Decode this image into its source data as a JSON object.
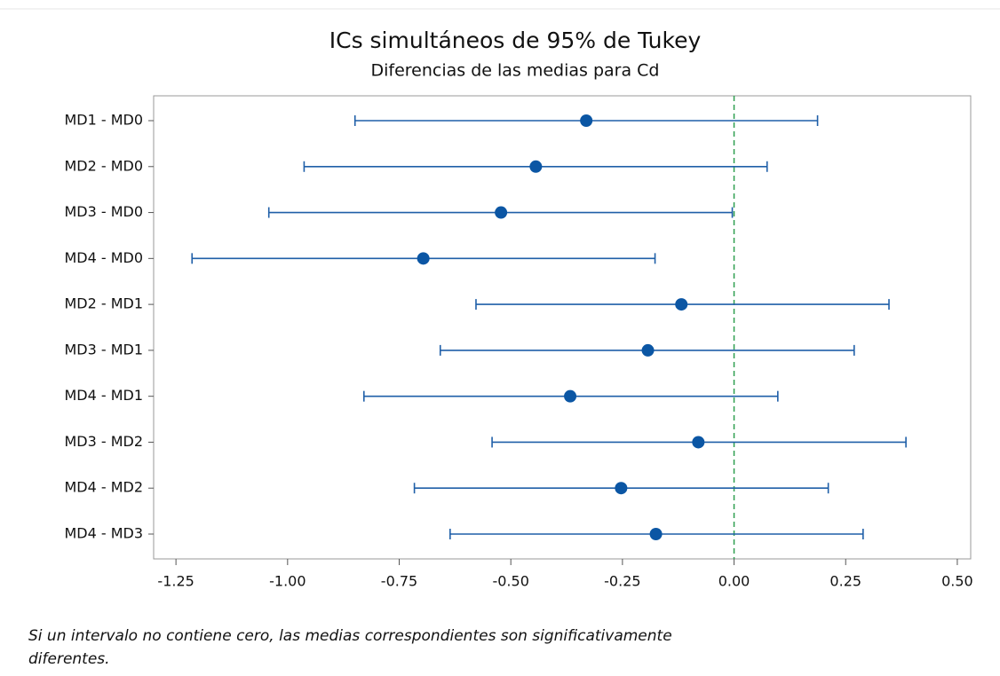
{
  "chart_data": {
    "type": "interval",
    "title": "ICs simultáneos de 95% de Tukey",
    "subtitle": "Diferencias de las medias para Cd",
    "categories": [
      "MD1 - MD0",
      "MD2 - MD0",
      "MD3 - MD0",
      "MD4 - MD0",
      "MD2 - MD1",
      "MD3 - MD1",
      "MD4 - MD1",
      "MD3 - MD2",
      "MD4 - MD2",
      "MD4 - MD3"
    ],
    "values": [
      -0.331,
      -0.444,
      -0.522,
      -0.696,
      -0.118,
      -0.193,
      -0.367,
      -0.08,
      -0.253,
      -0.175
    ],
    "lower": [
      -0.849,
      -0.963,
      -1.042,
      -1.214,
      -0.578,
      -0.658,
      -0.829,
      -0.542,
      -0.716,
      -0.636
    ],
    "upper": [
      0.187,
      0.074,
      -0.004,
      -0.177,
      0.347,
      0.269,
      0.098,
      0.385,
      0.211,
      0.289
    ],
    "color": "#1f5fa8",
    "xlim": [
      -1.3,
      0.53
    ],
    "xticks": [
      -1.25,
      {
        "value": -1,
        "label": "-1.00"
      },
      -0.75,
      {
        "value": -0.5,
        "label": "-0.50"
      },
      -0.25,
      {
        "value": 0,
        "label": "0.00"
      },
      0.25,
      {
        "value": 0.5,
        "label": "0.50"
      }
    ],
    "reference_line": 0,
    "reference_color": "#2e9e4f",
    "note": "Si un intervalo no contiene cero, las medias correspondientes son significativamente diferentes."
  }
}
